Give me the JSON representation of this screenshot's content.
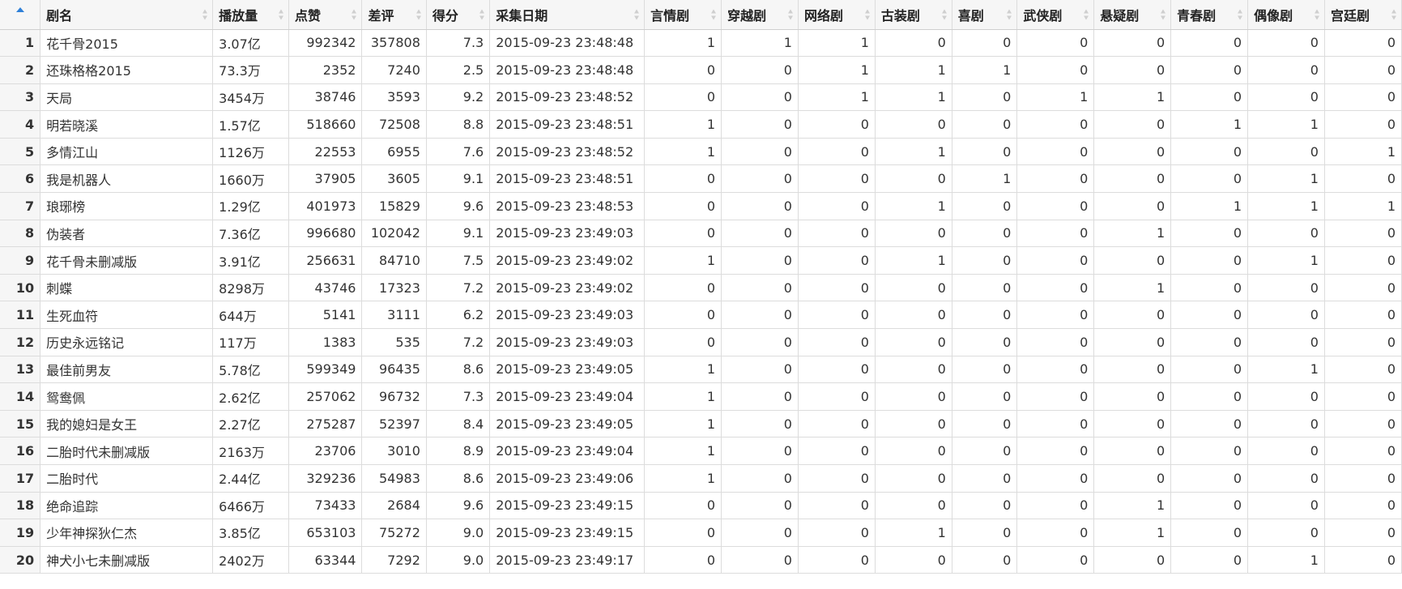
{
  "table": {
    "sort_icon": "sort-arrows-icon",
    "active_sort_icon": "sort-ascending-icon",
    "columns": [
      "剧名",
      "播放量",
      "点赞",
      "差评",
      "得分",
      "采集日期",
      "言情剧",
      "穿越剧",
      "网络剧",
      "古装剧",
      "喜剧",
      "武侠剧",
      "悬疑剧",
      "青春剧",
      "偶像剧",
      "宫廷剧"
    ],
    "rows": [
      [
        "1",
        "花千骨2015",
        "3.07亿",
        "992342",
        "357808",
        "7.3",
        "2015-09-23 23:48:48",
        "1",
        "1",
        "1",
        "0",
        "0",
        "0",
        "0",
        "0",
        "0",
        "0"
      ],
      [
        "2",
        "还珠格格2015",
        "73.3万",
        "2352",
        "7240",
        "2.5",
        "2015-09-23 23:48:48",
        "0",
        "0",
        "1",
        "1",
        "1",
        "0",
        "0",
        "0",
        "0",
        "0"
      ],
      [
        "3",
        "天局",
        "3454万",
        "38746",
        "3593",
        "9.2",
        "2015-09-23 23:48:52",
        "0",
        "0",
        "1",
        "1",
        "0",
        "1",
        "1",
        "0",
        "0",
        "0"
      ],
      [
        "4",
        "明若晓溪",
        "1.57亿",
        "518660",
        "72508",
        "8.8",
        "2015-09-23 23:48:51",
        "1",
        "0",
        "0",
        "0",
        "0",
        "0",
        "0",
        "1",
        "1",
        "0"
      ],
      [
        "5",
        "多情江山",
        "1126万",
        "22553",
        "6955",
        "7.6",
        "2015-09-23 23:48:52",
        "1",
        "0",
        "0",
        "1",
        "0",
        "0",
        "0",
        "0",
        "0",
        "1"
      ],
      [
        "6",
        "我是机器人",
        "1660万",
        "37905",
        "3605",
        "9.1",
        "2015-09-23 23:48:51",
        "0",
        "0",
        "0",
        "0",
        "1",
        "0",
        "0",
        "0",
        "1",
        "0"
      ],
      [
        "7",
        "琅琊榜",
        "1.29亿",
        "401973",
        "15829",
        "9.6",
        "2015-09-23 23:48:53",
        "0",
        "0",
        "0",
        "1",
        "0",
        "0",
        "0",
        "1",
        "1",
        "1"
      ],
      [
        "8",
        "伪装者",
        "7.36亿",
        "996680",
        "102042",
        "9.1",
        "2015-09-23 23:49:03",
        "0",
        "0",
        "0",
        "0",
        "0",
        "0",
        "1",
        "0",
        "0",
        "0"
      ],
      [
        "9",
        "花千骨未删减版",
        "3.91亿",
        "256631",
        "84710",
        "7.5",
        "2015-09-23 23:49:02",
        "1",
        "0",
        "0",
        "1",
        "0",
        "0",
        "0",
        "0",
        "1",
        "0"
      ],
      [
        "10",
        "刺蝶",
        "8298万",
        "43746",
        "17323",
        "7.2",
        "2015-09-23 23:49:02",
        "0",
        "0",
        "0",
        "0",
        "0",
        "0",
        "1",
        "0",
        "0",
        "0"
      ],
      [
        "11",
        "生死血符",
        "644万",
        "5141",
        "3111",
        "6.2",
        "2015-09-23 23:49:03",
        "0",
        "0",
        "0",
        "0",
        "0",
        "0",
        "0",
        "0",
        "0",
        "0"
      ],
      [
        "12",
        "历史永远铭记",
        "117万",
        "1383",
        "535",
        "7.2",
        "2015-09-23 23:49:03",
        "0",
        "0",
        "0",
        "0",
        "0",
        "0",
        "0",
        "0",
        "0",
        "0"
      ],
      [
        "13",
        "最佳前男友",
        "5.78亿",
        "599349",
        "96435",
        "8.6",
        "2015-09-23 23:49:05",
        "1",
        "0",
        "0",
        "0",
        "0",
        "0",
        "0",
        "0",
        "1",
        "0"
      ],
      [
        "14",
        "鸳鸯佩",
        "2.62亿",
        "257062",
        "96732",
        "7.3",
        "2015-09-23 23:49:04",
        "1",
        "0",
        "0",
        "0",
        "0",
        "0",
        "0",
        "0",
        "0",
        "0"
      ],
      [
        "15",
        "我的媳妇是女王",
        "2.27亿",
        "275287",
        "52397",
        "8.4",
        "2015-09-23 23:49:05",
        "1",
        "0",
        "0",
        "0",
        "0",
        "0",
        "0",
        "0",
        "0",
        "0"
      ],
      [
        "16",
        "二胎时代未删减版",
        "2163万",
        "23706",
        "3010",
        "8.9",
        "2015-09-23 23:49:04",
        "1",
        "0",
        "0",
        "0",
        "0",
        "0",
        "0",
        "0",
        "0",
        "0"
      ],
      [
        "17",
        "二胎时代",
        "2.44亿",
        "329236",
        "54983",
        "8.6",
        "2015-09-23 23:49:06",
        "1",
        "0",
        "0",
        "0",
        "0",
        "0",
        "0",
        "0",
        "0",
        "0"
      ],
      [
        "18",
        "绝命追踪",
        "6466万",
        "73433",
        "2684",
        "9.6",
        "2015-09-23 23:49:15",
        "0",
        "0",
        "0",
        "0",
        "0",
        "0",
        "1",
        "0",
        "0",
        "0"
      ],
      [
        "19",
        "少年神探狄仁杰",
        "3.85亿",
        "653103",
        "75272",
        "9.0",
        "2015-09-23 23:49:15",
        "0",
        "0",
        "0",
        "1",
        "0",
        "0",
        "1",
        "0",
        "0",
        "0"
      ],
      [
        "20",
        "神犬小七未删减版",
        "2402万",
        "63344",
        "7292",
        "9.0",
        "2015-09-23 23:49:17",
        "0",
        "0",
        "0",
        "0",
        "0",
        "0",
        "0",
        "0",
        "1",
        "0"
      ]
    ]
  },
  "colors": {
    "header_bg": "#f6f6f6",
    "border": "#dcdcdc",
    "sort_active": "#2f80d8",
    "sort_inactive": "#cfcfcf"
  }
}
